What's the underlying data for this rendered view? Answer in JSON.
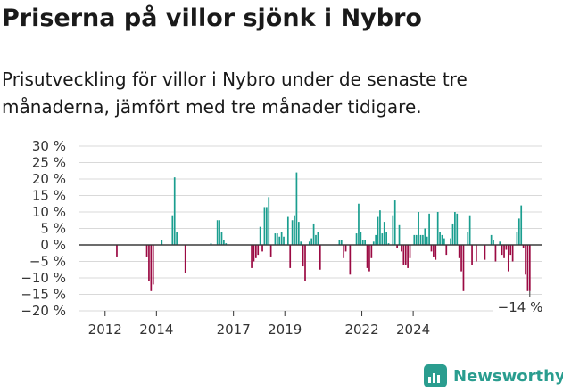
{
  "title": "Priserna på villor sjönk i Nybro",
  "subtitle": "Prisutveckling för villor i Nybro under de senaste tre månaderna, jämfört med tre månader tidigare.",
  "brand": {
    "name": "Newsworthy",
    "icon": "newsworthy-logo-icon"
  },
  "colors": {
    "positive": "#1a9e8f",
    "negative": "#9b0a43",
    "grid": "#d9d9d9",
    "axis": "#333333",
    "text": "#333333"
  },
  "chart_data": {
    "type": "bar",
    "title": "Priserna på villor sjönk i Nybro",
    "xlabel": "",
    "ylabel": "",
    "ylim": [
      -20,
      30
    ],
    "yticks": [
      30,
      25,
      20,
      15,
      10,
      5,
      0,
      -5,
      -10,
      -15,
      -20
    ],
    "ytick_labels": [
      "30 %",
      "25 %",
      "20 %",
      "15 %",
      "10 %",
      "5 %",
      "0 %",
      "−5 %",
      "−10 %",
      "−15 %",
      "−20 %"
    ],
    "xtick_labels": [
      {
        "label": "2012",
        "year": 2012
      },
      {
        "label": "2014",
        "year": 2014
      },
      {
        "label": "2017",
        "year": 2017
      },
      {
        "label": "2019",
        "year": 2019
      },
      {
        "label": "2022",
        "year": 2022
      },
      {
        "label": "2024",
        "year": 2024
      }
    ],
    "start": "2011-01",
    "annotation": {
      "text": "−14 %",
      "value": -14
    },
    "values": [
      null,
      null,
      null,
      null,
      null,
      null,
      null,
      null,
      null,
      null,
      null,
      null,
      null,
      null,
      null,
      null,
      null,
      -3.5,
      null,
      null,
      null,
      null,
      null,
      null,
      null,
      null,
      null,
      null,
      null,
      null,
      null,
      -3.5,
      -11,
      -14,
      -12,
      null,
      null,
      null,
      1.5,
      null,
      null,
      null,
      null,
      9,
      20.5,
      4,
      null,
      null,
      null,
      -8.5,
      null,
      null,
      null,
      null,
      null,
      null,
      null,
      null,
      null,
      null,
      null,
      0.5,
      null,
      null,
      7.5,
      7.5,
      4,
      1.5,
      0.5,
      null,
      null,
      null,
      null,
      null,
      null,
      null,
      null,
      null,
      null,
      null,
      -7,
      -5,
      -4,
      -3,
      5.5,
      -2,
      11.5,
      11.5,
      14.5,
      -3.5,
      null,
      3.5,
      3.5,
      2.5,
      4,
      2.5,
      null,
      8.5,
      -7,
      7.5,
      9,
      22,
      7,
      1,
      -6.5,
      -11,
      null,
      1,
      2,
      6.5,
      3,
      4,
      -7.5,
      null,
      null,
      null,
      null,
      null,
      null,
      null,
      null,
      1.5,
      1.5,
      -4,
      -2,
      null,
      -9,
      null,
      null,
      3.5,
      12.5,
      4,
      1.5,
      1.5,
      -7,
      -8,
      -4,
      1,
      3,
      8.5,
      10.5,
      3.5,
      7,
      4,
      0.5,
      null,
      9,
      13.5,
      -1,
      6,
      -2,
      -6,
      -6,
      -7,
      -4,
      null,
      3,
      3,
      10,
      3,
      3,
      5,
      2.5,
      9.5,
      -2,
      -3.5,
      -4.5,
      10,
      4,
      3,
      2,
      -3,
      null,
      2,
      6.5,
      10,
      9.5,
      -4,
      -8,
      -14,
      null,
      4,
      9,
      -6,
      null,
      -5,
      null,
      null,
      null,
      -4.5,
      null,
      null,
      3,
      1.5,
      -5,
      null,
      1,
      -3,
      -4,
      -1.5,
      -8,
      -3,
      -5,
      null,
      4,
      8,
      12,
      -1,
      -9,
      -14,
      -14,
      null,
      null,
      null,
      null,
      null
    ]
  }
}
